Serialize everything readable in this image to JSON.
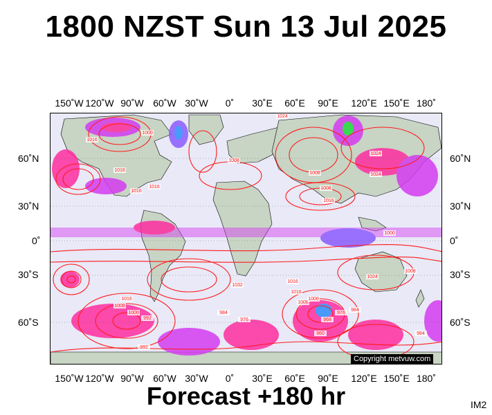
{
  "title": "1800 NZST Sun 13 Jul 2025",
  "forecast": "Forecast +180 hr",
  "im_label": "IM2",
  "copyright": "Copyright metvuw.com",
  "longitude_ticks": [
    "150˚W",
    "120˚W",
    "90˚W",
    "60˚W",
    "30˚W",
    "0˚",
    "30˚E",
    "60˚E",
    "90˚E",
    "120˚E",
    "150˚E",
    "180˚"
  ],
  "latitude_ticks": [
    "60˚N",
    "30˚N",
    "0˚",
    "30˚S",
    "60˚S"
  ],
  "isobar_labels": [
    "1024",
    "1016",
    "1008",
    "1008",
    "1008",
    "1016",
    "1016",
    "1016",
    "1016",
    "1000",
    "1024",
    "1024",
    "1032",
    "1016",
    "1016",
    "1008",
    "1000",
    "1008",
    "1016",
    "1000",
    "992",
    "984",
    "976",
    "968",
    "960",
    "976",
    "984",
    "1008",
    "1000",
    "1024",
    "992",
    "984"
  ],
  "colors": {
    "isobar": "#ff1a1a",
    "ocean": "#e9e9f7",
    "land": "#c8d4c4",
    "rain_heavy": "#ff2ea0",
    "rain_medium": "#d43cf0",
    "rain_light": "#8a5cff",
    "rain_intense": "#2f8cff",
    "rain_extreme": "#1fdc3c"
  }
}
